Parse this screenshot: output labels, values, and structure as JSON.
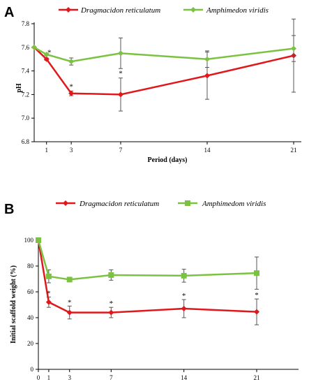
{
  "chart_data": [
    {
      "type": "line",
      "panel_label": "A",
      "x": [
        0,
        1,
        3,
        7,
        14,
        21
      ],
      "x_tick_labels": [
        "1",
        "3",
        "7",
        "14",
        "21"
      ],
      "xlabel": "Period (days)",
      "ylabel": "pH",
      "ylim": [
        6.8,
        7.8
      ],
      "y_tick_labels": [
        "6.8",
        "7.0",
        "7.2",
        "7.4",
        "7.6",
        "7.8"
      ],
      "y_ticks": [
        6.8,
        7.0,
        7.2,
        7.4,
        7.6,
        7.8
      ],
      "grid": false,
      "legend_position": "top",
      "series": [
        {
          "name": "Dragmacidon reticulatum",
          "color": "#e0181c",
          "marker": "diamond",
          "values": [
            7.6,
            7.5,
            7.21,
            7.2,
            7.36,
            7.53
          ],
          "errors": [
            0,
            0.01,
            0.02,
            0.14,
            0.2,
            0.31
          ],
          "significance": [
            "",
            "*",
            "*",
            "*",
            "",
            ""
          ]
        },
        {
          "name": "Amphimedon viridis",
          "color": "#7cc242",
          "marker": "diamond",
          "values": [
            7.6,
            7.54,
            7.48,
            7.55,
            7.5,
            7.59
          ],
          "errors": [
            0,
            0.01,
            0.03,
            0.13,
            0.07,
            0.11
          ],
          "significance": [
            "",
            "",
            "",
            "",
            "",
            ""
          ]
        }
      ]
    },
    {
      "type": "line",
      "panel_label": "B",
      "x": [
        0,
        1,
        3,
        7,
        14,
        21
      ],
      "x_tick_labels": [
        "0",
        "1",
        "3",
        "7",
        "14",
        "21"
      ],
      "xlabel": "",
      "ylabel": "Initial scaffold weight (%)",
      "ylim": [
        0,
        100
      ],
      "y_tick_labels": [
        "0",
        "20",
        "40",
        "60",
        "80",
        "100"
      ],
      "y_ticks": [
        0,
        20,
        40,
        60,
        80,
        100
      ],
      "grid": false,
      "legend_position": "top",
      "series": [
        {
          "name": "Dragmacidon reticulatum",
          "color": "#e0181c",
          "marker": "diamond",
          "values": [
            100,
            52,
            44,
            44,
            47,
            44.5
          ],
          "errors": [
            0,
            4,
            5,
            4,
            7,
            10
          ],
          "significance": [
            "",
            "*",
            "*",
            "*",
            "*",
            "*"
          ]
        },
        {
          "name": "Amphimedom viridis",
          "color": "#7cc242",
          "marker": "square",
          "values": [
            100,
            72,
            69.5,
            73,
            72.5,
            74.5
          ],
          "errors": [
            0,
            5,
            1.5,
            4,
            5,
            12.5
          ],
          "significance": [
            "",
            "",
            "",
            "",
            "",
            ""
          ]
        }
      ]
    }
  ]
}
